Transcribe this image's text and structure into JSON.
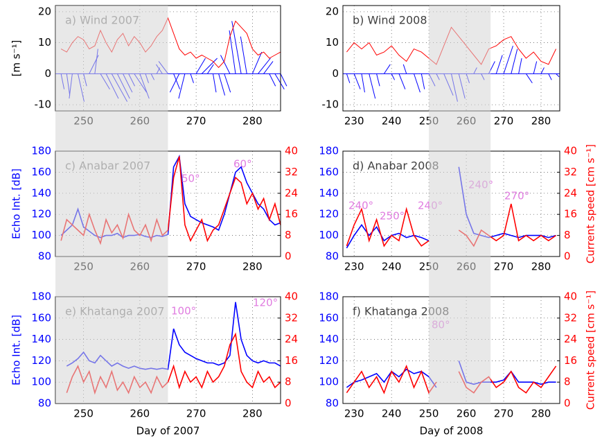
{
  "chart_data": [
    {
      "type": "stick",
      "title": "a) Wind 2007",
      "ylabel": "[m s⁻¹]",
      "title_color": "#808080",
      "x": [
        246,
        247,
        248,
        249,
        250,
        251,
        252,
        253,
        254,
        255,
        256,
        257,
        258,
        259,
        260,
        261,
        262,
        263,
        264,
        265,
        266,
        267,
        268,
        269,
        270,
        271,
        272,
        273,
        274,
        275,
        276,
        277,
        278,
        279,
        280,
        281,
        282,
        283,
        284,
        285
      ],
      "xlim": [
        245,
        285
      ],
      "xticks": [
        250,
        260,
        270,
        280
      ],
      "ylim": [
        -12,
        22
      ],
      "yticks": [
        -10,
        0,
        10,
        20
      ],
      "grid": true,
      "shade": [
        245,
        265
      ],
      "series": [
        {
          "color": "#ff0000",
          "values": [
            8,
            7,
            10,
            12,
            11,
            8,
            9,
            14,
            10,
            7,
            11,
            13,
            9,
            12,
            10,
            7,
            9,
            12,
            14,
            18,
            13,
            8,
            6,
            7,
            5,
            6,
            5,
            4,
            2,
            4,
            12,
            17,
            15,
            13,
            8,
            6,
            7,
            5,
            6,
            7
          ]
        }
      ],
      "vectors": {
        "color": "#0000ff",
        "u": [
          1,
          1,
          -1,
          2,
          1,
          3,
          1,
          3,
          4,
          5,
          4,
          3,
          2,
          4,
          3,
          1,
          1,
          1,
          -2,
          -3,
          2,
          -3,
          -2,
          1,
          3,
          5,
          2,
          1,
          2,
          2,
          -3,
          -2,
          -3,
          -2,
          3,
          4,
          3,
          2,
          3,
          2
        ],
        "v": [
          -5,
          -7,
          -8,
          -9,
          -4,
          6,
          8,
          -5,
          -8,
          -9,
          -8,
          -6,
          -4,
          -6,
          -8,
          -3,
          -2,
          2,
          3,
          4,
          -5,
          -6,
          -8,
          -3,
          5,
          5,
          3,
          -6,
          -7,
          -6,
          6,
          14,
          17,
          12,
          7,
          5,
          4,
          -4,
          -5,
          -4
        ]
      }
    },
    {
      "type": "stick",
      "title": "b) Wind 2008",
      "title_color": "#404040",
      "x": [
        228,
        230,
        232,
        234,
        236,
        238,
        240,
        242,
        244,
        246,
        248,
        250,
        252,
        254,
        256,
        258,
        260,
        262,
        264,
        266,
        268,
        270,
        272,
        274,
        276,
        278,
        280,
        282,
        284
      ],
      "xlim": [
        227,
        285
      ],
      "xticks": [
        230,
        240,
        250,
        260,
        270,
        280
      ],
      "ylim": [
        -12,
        22
      ],
      "yticks": [
        -10,
        0,
        10,
        20
      ],
      "grid": true,
      "shade": [
        250,
        266.5
      ],
      "series": [
        {
          "color": "#ff0000",
          "values": [
            7,
            10,
            8,
            10,
            6,
            7,
            9,
            6,
            4,
            8,
            7,
            5,
            3,
            9,
            15,
            12,
            9,
            6,
            3,
            8,
            9,
            11,
            12,
            8,
            5,
            7,
            4,
            3,
            8
          ]
        }
      ],
      "vectors": {
        "color": "#0000ff",
        "u": [
          1,
          2,
          1,
          2,
          1,
          2,
          1,
          2,
          -1,
          2,
          1,
          2,
          1,
          3,
          2,
          2,
          1,
          1,
          1,
          2,
          2,
          3,
          2,
          1,
          2,
          1,
          1,
          1,
          1
        ],
        "v": [
          -3,
          -5,
          -6,
          -8,
          -4,
          3,
          -2,
          -5,
          3,
          -6,
          -5,
          -4,
          -2,
          -7,
          -9,
          -8,
          -3,
          2,
          -2,
          4,
          6,
          9,
          8,
          5,
          -3,
          4,
          2,
          -2,
          -1
        ]
      }
    },
    {
      "type": "line",
      "title": "c) Anabar 2007",
      "ylabel": "Echo Int. [dB]",
      "title_color": "#808080",
      "x": [
        246,
        247,
        248,
        249,
        250,
        251,
        252,
        253,
        254,
        255,
        256,
        257,
        258,
        259,
        260,
        261,
        262,
        263,
        264,
        265,
        266,
        267,
        268,
        269,
        270,
        271,
        272,
        273,
        274,
        275,
        276,
        277,
        278,
        279,
        280,
        281,
        282,
        283,
        284,
        285
      ],
      "xlim": [
        245,
        285
      ],
      "xticks": [
        250,
        260,
        270,
        280
      ],
      "ylim": [
        80,
        180
      ],
      "yticks": [
        80,
        100,
        120,
        140,
        160,
        180
      ],
      "y2lim": [
        0,
        40
      ],
      "y2ticks": [
        0,
        8,
        16,
        24,
        32,
        40
      ],
      "grid": true,
      "shade": [
        245,
        265
      ],
      "series": [
        {
          "color": "#0000ff",
          "values": [
            100,
            105,
            110,
            125,
            108,
            104,
            100,
            98,
            100,
            100,
            102,
            98,
            100,
            100,
            101,
            99,
            98,
            100,
            99,
            101,
            165,
            175,
            130,
            118,
            115,
            112,
            110,
            108,
            105,
            120,
            140,
            160,
            165,
            150,
            140,
            130,
            125,
            115,
            110,
            112
          ]
        },
        {
          "color": "#ff0000",
          "axis": "y2",
          "values": [
            6,
            14,
            12,
            10,
            8,
            16,
            10,
            5,
            14,
            9,
            12,
            7,
            16,
            10,
            8,
            12,
            6,
            14,
            8,
            10,
            30,
            38,
            12,
            6,
            10,
            14,
            6,
            10,
            12,
            18,
            24,
            30,
            28,
            20,
            24,
            18,
            22,
            14,
            20,
            12
          ]
        }
      ],
      "annotation_color": "#e07ce0",
      "annotations": [
        "50°",
        "60°"
      ]
    },
    {
      "type": "line",
      "title": "d) Anabar 2008",
      "y2label": "Current speed [cm s⁻¹]",
      "title_color": "#404040",
      "x": [
        228,
        230,
        232,
        234,
        236,
        238,
        240,
        242,
        244,
        246,
        248,
        250,
        252,
        254,
        256,
        258,
        260,
        262,
        264,
        266,
        268,
        270,
        272,
        274,
        276,
        278,
        280,
        282,
        284
      ],
      "xlim": [
        227,
        285
      ],
      "xticks": [
        230,
        240,
        250,
        260,
        270,
        280
      ],
      "ylim": [
        80,
        180
      ],
      "yticks": [
        80,
        100,
        120,
        140,
        160,
        180
      ],
      "y2lim": [
        0,
        40
      ],
      "y2ticks": [
        0,
        8,
        16,
        24,
        32,
        40
      ],
      "grid": true,
      "shade": [
        250,
        266.5
      ],
      "series": [
        {
          "color": "#0000ff",
          "values": [
            88,
            100,
            110,
            100,
            108,
            95,
            100,
            102,
            98,
            100,
            98,
            95,
            null,
            null,
            null,
            165,
            120,
            102,
            100,
            98,
            100,
            102,
            100,
            98,
            100,
            100,
            100,
            98,
            100
          ]
        },
        {
          "color": "#ff0000",
          "axis": "y2",
          "values": [
            4,
            12,
            18,
            6,
            14,
            4,
            8,
            6,
            18,
            8,
            4,
            6,
            null,
            null,
            null,
            10,
            8,
            4,
            10,
            8,
            6,
            8,
            20,
            6,
            8,
            6,
            8,
            6,
            8
          ]
        }
      ],
      "annotation_color": "#e07ce0",
      "annotations": [
        "240°",
        "250°",
        "240°",
        "240°",
        "270°"
      ]
    },
    {
      "type": "line",
      "title": "e) Khatanga 2007",
      "ylabel": "Echo Int. [dB]",
      "xlabel": "Day of 2007",
      "title_color": "#808080",
      "x": [
        247,
        248,
        249,
        250,
        251,
        252,
        253,
        254,
        255,
        256,
        257,
        258,
        259,
        260,
        261,
        262,
        263,
        264,
        265,
        266,
        267,
        268,
        269,
        270,
        271,
        272,
        273,
        274,
        275,
        276,
        277,
        278,
        279,
        280,
        281,
        282,
        283,
        284,
        285
      ],
      "xlim": [
        245,
        285
      ],
      "xticks": [
        250,
        260,
        270,
        280
      ],
      "ylim": [
        80,
        180
      ],
      "yticks": [
        80,
        100,
        120,
        140,
        160,
        180
      ],
      "y2lim": [
        0,
        40
      ],
      "y2ticks": [
        0,
        8,
        16,
        24,
        32,
        40
      ],
      "grid": true,
      "shade": [
        245,
        265
      ],
      "series": [
        {
          "color": "#0000ff",
          "values": [
            115,
            118,
            122,
            128,
            120,
            118,
            125,
            120,
            115,
            118,
            115,
            113,
            115,
            113,
            112,
            113,
            112,
            113,
            112,
            150,
            135,
            128,
            125,
            122,
            120,
            118,
            118,
            116,
            118,
            125,
            175,
            140,
            125,
            120,
            118,
            120,
            118,
            118,
            115
          ]
        },
        {
          "color": "#ff0000",
          "axis": "y2",
          "values": [
            4,
            10,
            14,
            8,
            12,
            4,
            10,
            6,
            12,
            5,
            8,
            4,
            10,
            6,
            8,
            4,
            10,
            6,
            8,
            14,
            6,
            12,
            8,
            10,
            6,
            12,
            8,
            10,
            14,
            22,
            26,
            12,
            8,
            6,
            12,
            8,
            10,
            6,
            8
          ]
        }
      ],
      "annotation_color": "#e07ce0",
      "annotations": [
        "100°",
        "120°"
      ]
    },
    {
      "type": "line",
      "title": "f) Khatanga 2008",
      "y2label": "Current speed [cm s⁻¹]",
      "xlabel": "Day of 2008",
      "title_color": "#404040",
      "x": [
        228,
        230,
        232,
        234,
        236,
        238,
        240,
        242,
        244,
        246,
        248,
        250,
        252,
        254,
        256,
        258,
        260,
        262,
        264,
        266,
        268,
        270,
        272,
        274,
        276,
        278,
        280,
        282,
        284
      ],
      "xlim": [
        227,
        285
      ],
      "xticks": [
        230,
        240,
        250,
        260,
        270,
        280
      ],
      "ylim": [
        80,
        180
      ],
      "yticks": [
        80,
        100,
        120,
        140,
        160,
        180
      ],
      "y2lim": [
        0,
        40
      ],
      "y2ticks": [
        0,
        8,
        16,
        24,
        32,
        40
      ],
      "grid": true,
      "shade": [
        250,
        266.5
      ],
      "series": [
        {
          "color": "#0000ff",
          "values": [
            95,
            100,
            102,
            105,
            108,
            100,
            110,
            105,
            112,
            108,
            110,
            105,
            95,
            null,
            null,
            120,
            100,
            98,
            100,
            100,
            100,
            102,
            110,
            100,
            100,
            100,
            98,
            100,
            100
          ]
        },
        {
          "color": "#ff0000",
          "axis": "y2",
          "values": [
            4,
            8,
            12,
            6,
            10,
            4,
            12,
            8,
            14,
            6,
            12,
            4,
            8,
            null,
            null,
            12,
            6,
            4,
            8,
            10,
            6,
            8,
            12,
            6,
            4,
            8,
            6,
            10,
            14
          ]
        }
      ],
      "annotation_color": "#e07ce0",
      "annotations": [
        "80°"
      ]
    }
  ]
}
